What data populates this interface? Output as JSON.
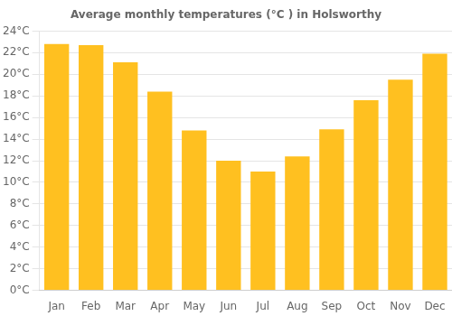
{
  "chart_data": {
    "type": "bar",
    "title": "Average monthly temperatures (°C ) in Holsworthy",
    "categories": [
      "Jan",
      "Feb",
      "Mar",
      "Apr",
      "May",
      "Jun",
      "Jul",
      "Aug",
      "Sep",
      "Oct",
      "Nov",
      "Dec"
    ],
    "values": [
      22.8,
      22.7,
      21.1,
      18.4,
      14.8,
      12.0,
      11.0,
      12.4,
      14.9,
      17.6,
      19.5,
      21.9
    ],
    "color": "#FFC020",
    "ylim": [
      0,
      24
    ],
    "yticks": [
      {
        "value": 0,
        "label": "0°C"
      },
      {
        "value": 2,
        "label": "2°C"
      },
      {
        "value": 4,
        "label": "4°C"
      },
      {
        "value": 6,
        "label": "6°C"
      },
      {
        "value": 8,
        "label": "8°C"
      },
      {
        "value": 10,
        "label": "10°C"
      },
      {
        "value": 12,
        "label": "12°C"
      },
      {
        "value": 14,
        "label": "14°C"
      },
      {
        "value": 16,
        "label": "16°C"
      },
      {
        "value": 18,
        "label": "18°C"
      },
      {
        "value": 20,
        "label": "20°C"
      },
      {
        "value": 22,
        "label": "22°C"
      },
      {
        "value": 24,
        "label": "24°C"
      }
    ],
    "grid": true
  }
}
